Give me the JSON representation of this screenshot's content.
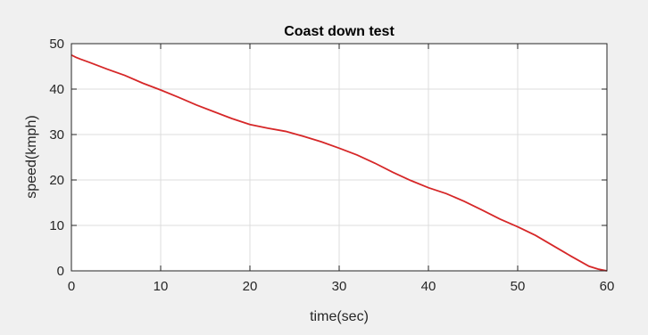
{
  "chart_data": {
    "type": "line",
    "title": "Coast down test",
    "xlabel": "time(sec)",
    "ylabel": "speed(kmph)",
    "xlim": [
      0,
      60
    ],
    "ylim": [
      0,
      50
    ],
    "xticks": [
      0,
      10,
      20,
      30,
      40,
      50,
      60
    ],
    "yticks": [
      0,
      10,
      20,
      30,
      40,
      50
    ],
    "grid": true,
    "series": [
      {
        "color": "#d62728",
        "x": [
          0,
          0.5,
          1,
          2,
          4,
          6,
          8,
          10,
          12,
          14,
          16,
          18,
          20,
          22,
          24,
          26,
          28,
          30,
          32,
          34,
          36,
          38,
          40,
          42,
          44,
          46,
          48,
          50,
          52,
          54,
          56,
          58,
          59,
          60
        ],
        "y": [
          47.5,
          47.0,
          46.6,
          45.9,
          44.4,
          43.0,
          41.3,
          39.8,
          38.2,
          36.5,
          35.0,
          33.5,
          32.2,
          31.4,
          30.7,
          29.6,
          28.4,
          27.0,
          25.5,
          23.7,
          21.7,
          19.9,
          18.3,
          17.0,
          15.3,
          13.4,
          11.4,
          9.7,
          7.8,
          5.5,
          3.2,
          1.0,
          0.4,
          0.0
        ]
      }
    ]
  }
}
